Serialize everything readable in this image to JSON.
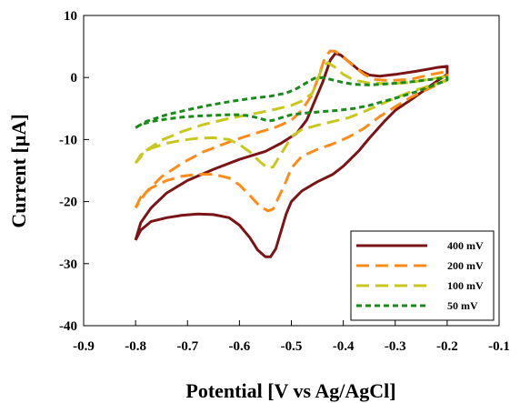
{
  "chart_data": {
    "type": "line",
    "title": "",
    "xlabel": "Potential [V vs Ag/AgCl]",
    "ylabel": "Current [µA]",
    "xlim": [
      -0.9,
      -0.1
    ],
    "ylim": [
      -40,
      10
    ],
    "xticks": [
      "-0.9",
      "-0.8",
      "-0.7",
      "-0.6",
      "-0.5",
      "-0.4",
      "-0.3",
      "-0.2",
      "-0.1"
    ],
    "yticks": [
      "10",
      "0",
      "-10",
      "-20",
      "-30",
      "-40"
    ],
    "grid": false,
    "legend_position": "bottom-right",
    "series": [
      {
        "name": "400 mV",
        "color": "#7b1416",
        "dash": "solid",
        "points": [
          [
            -0.8,
            -26.2
          ],
          [
            -0.79,
            -24.6
          ],
          [
            -0.77,
            -23.2
          ],
          [
            -0.74,
            -22.6
          ],
          [
            -0.71,
            -22.2
          ],
          [
            -0.68,
            -22.0
          ],
          [
            -0.65,
            -22.1
          ],
          [
            -0.62,
            -22.6
          ],
          [
            -0.6,
            -23.8
          ],
          [
            -0.58,
            -25.8
          ],
          [
            -0.565,
            -27.8
          ],
          [
            -0.55,
            -28.9
          ],
          [
            -0.54,
            -28.9
          ],
          [
            -0.53,
            -27.6
          ],
          [
            -0.52,
            -24.8
          ],
          [
            -0.51,
            -22.0
          ],
          [
            -0.5,
            -20.0
          ],
          [
            -0.48,
            -18.3
          ],
          [
            -0.45,
            -16.8
          ],
          [
            -0.42,
            -15.6
          ],
          [
            -0.4,
            -14.3
          ],
          [
            -0.37,
            -11.8
          ],
          [
            -0.35,
            -9.8
          ],
          [
            -0.32,
            -7.0
          ],
          [
            -0.3,
            -5.3
          ],
          [
            -0.27,
            -3.6
          ],
          [
            -0.24,
            -1.8
          ],
          [
            -0.22,
            -0.6
          ],
          [
            -0.2,
            0.5
          ],
          [
            -0.2,
            1.8
          ],
          [
            -0.22,
            1.6
          ],
          [
            -0.26,
            1.0
          ],
          [
            -0.3,
            0.5
          ],
          [
            -0.33,
            0.2
          ],
          [
            -0.35,
            0.4
          ],
          [
            -0.37,
            1.2
          ],
          [
            -0.39,
            2.6
          ],
          [
            -0.405,
            3.6
          ],
          [
            -0.415,
            3.9
          ],
          [
            -0.425,
            2.8
          ],
          [
            -0.44,
            -0.8
          ],
          [
            -0.455,
            -3.8
          ],
          [
            -0.47,
            -6.8
          ],
          [
            -0.49,
            -9.0
          ],
          [
            -0.52,
            -10.6
          ],
          [
            -0.55,
            -11.9
          ],
          [
            -0.6,
            -13.2
          ],
          [
            -0.65,
            -14.8
          ],
          [
            -0.7,
            -16.6
          ],
          [
            -0.74,
            -18.6
          ],
          [
            -0.77,
            -21.0
          ],
          [
            -0.79,
            -23.4
          ],
          [
            -0.8,
            -26.2
          ]
        ]
      },
      {
        "name": "200 mV",
        "color": "#ff8c1a",
        "dash": "long-dash",
        "points": [
          [
            -0.8,
            -21.0
          ],
          [
            -0.79,
            -19.3
          ],
          [
            -0.77,
            -17.8
          ],
          [
            -0.74,
            -16.6
          ],
          [
            -0.71,
            -15.9
          ],
          [
            -0.68,
            -15.6
          ],
          [
            -0.65,
            -15.6
          ],
          [
            -0.62,
            -16.2
          ],
          [
            -0.6,
            -17.3
          ],
          [
            -0.58,
            -19.0
          ],
          [
            -0.56,
            -20.8
          ],
          [
            -0.545,
            -21.5
          ],
          [
            -0.535,
            -21.2
          ],
          [
            -0.525,
            -19.4
          ],
          [
            -0.51,
            -16.7
          ],
          [
            -0.5,
            -14.6
          ],
          [
            -0.48,
            -12.7
          ],
          [
            -0.45,
            -11.6
          ],
          [
            -0.42,
            -10.7
          ],
          [
            -0.39,
            -9.6
          ],
          [
            -0.36,
            -8.2
          ],
          [
            -0.33,
            -6.3
          ],
          [
            -0.3,
            -4.7
          ],
          [
            -0.27,
            -3.2
          ],
          [
            -0.24,
            -2.0
          ],
          [
            -0.22,
            -1.2
          ],
          [
            -0.2,
            -0.3
          ],
          [
            -0.2,
            1.0
          ],
          [
            -0.23,
            0.5
          ],
          [
            -0.27,
            -0.3
          ],
          [
            -0.31,
            -0.5
          ],
          [
            -0.34,
            -0.3
          ],
          [
            -0.36,
            0.5
          ],
          [
            -0.38,
            1.8
          ],
          [
            -0.4,
            3.3
          ],
          [
            -0.415,
            4.2
          ],
          [
            -0.425,
            4.3
          ],
          [
            -0.435,
            3.3
          ],
          [
            -0.445,
            0.8
          ],
          [
            -0.46,
            -2.8
          ],
          [
            -0.48,
            -5.3
          ],
          [
            -0.5,
            -6.9
          ],
          [
            -0.53,
            -8.0
          ],
          [
            -0.57,
            -9.0
          ],
          [
            -0.62,
            -10.4
          ],
          [
            -0.67,
            -12.0
          ],
          [
            -0.71,
            -13.8
          ],
          [
            -0.75,
            -16.0
          ],
          [
            -0.78,
            -18.5
          ],
          [
            -0.8,
            -21.0
          ]
        ]
      },
      {
        "name": "100 mV",
        "color": "#c8c71e",
        "dash": "long-dash",
        "points": [
          [
            -0.8,
            -13.8
          ],
          [
            -0.79,
            -12.5
          ],
          [
            -0.77,
            -11.4
          ],
          [
            -0.74,
            -10.6
          ],
          [
            -0.71,
            -10.1
          ],
          [
            -0.68,
            -9.8
          ],
          [
            -0.65,
            -9.7
          ],
          [
            -0.62,
            -10.0
          ],
          [
            -0.6,
            -10.8
          ],
          [
            -0.58,
            -12.0
          ],
          [
            -0.56,
            -13.6
          ],
          [
            -0.545,
            -14.6
          ],
          [
            -0.535,
            -14.4
          ],
          [
            -0.525,
            -13.0
          ],
          [
            -0.51,
            -11.0
          ],
          [
            -0.5,
            -9.5
          ],
          [
            -0.48,
            -8.4
          ],
          [
            -0.45,
            -7.7
          ],
          [
            -0.42,
            -7.1
          ],
          [
            -0.39,
            -6.5
          ],
          [
            -0.36,
            -5.5
          ],
          [
            -0.33,
            -4.4
          ],
          [
            -0.3,
            -3.3
          ],
          [
            -0.27,
            -2.3
          ],
          [
            -0.24,
            -1.5
          ],
          [
            -0.2,
            -0.5
          ],
          [
            -0.2,
            0.2
          ],
          [
            -0.23,
            -0.2
          ],
          [
            -0.27,
            -0.8
          ],
          [
            -0.31,
            -1.0
          ],
          [
            -0.35,
            -0.9
          ],
          [
            -0.38,
            -0.4
          ],
          [
            -0.4,
            0.5
          ],
          [
            -0.415,
            1.6
          ],
          [
            -0.43,
            2.4
          ],
          [
            -0.44,
            1.8
          ],
          [
            -0.45,
            -0.5
          ],
          [
            -0.46,
            -2.6
          ],
          [
            -0.48,
            -3.8
          ],
          [
            -0.5,
            -4.5
          ],
          [
            -0.53,
            -5.1
          ],
          [
            -0.57,
            -5.8
          ],
          [
            -0.62,
            -6.6
          ],
          [
            -0.67,
            -7.6
          ],
          [
            -0.71,
            -8.7
          ],
          [
            -0.75,
            -10.1
          ],
          [
            -0.78,
            -11.8
          ],
          [
            -0.8,
            -13.8
          ]
        ]
      },
      {
        "name": "50 mV",
        "color": "#1a8a1a",
        "dash": "short-dash",
        "points": [
          [
            -0.8,
            -8.1
          ],
          [
            -0.79,
            -7.6
          ],
          [
            -0.77,
            -7.1
          ],
          [
            -0.74,
            -6.7
          ],
          [
            -0.71,
            -6.4
          ],
          [
            -0.68,
            -6.2
          ],
          [
            -0.65,
            -6.1
          ],
          [
            -0.62,
            -6.0
          ],
          [
            -0.6,
            -6.0
          ],
          [
            -0.58,
            -6.2
          ],
          [
            -0.56,
            -6.6
          ],
          [
            -0.545,
            -7.0
          ],
          [
            -0.535,
            -6.9
          ],
          [
            -0.52,
            -6.5
          ],
          [
            -0.5,
            -6.0
          ],
          [
            -0.47,
            -5.7
          ],
          [
            -0.44,
            -5.5
          ],
          [
            -0.41,
            -5.3
          ],
          [
            -0.38,
            -5.0
          ],
          [
            -0.35,
            -4.5
          ],
          [
            -0.32,
            -3.8
          ],
          [
            -0.29,
            -3.1
          ],
          [
            -0.26,
            -2.3
          ],
          [
            -0.23,
            -1.4
          ],
          [
            -0.2,
            -0.4
          ],
          [
            -0.2,
            0.0
          ],
          [
            -0.23,
            -0.3
          ],
          [
            -0.27,
            -0.7
          ],
          [
            -0.31,
            -1.0
          ],
          [
            -0.35,
            -1.2
          ],
          [
            -0.38,
            -1.1
          ],
          [
            -0.4,
            -0.8
          ],
          [
            -0.42,
            -0.4
          ],
          [
            -0.44,
            0.0
          ],
          [
            -0.455,
            -0.1
          ],
          [
            -0.47,
            -0.8
          ],
          [
            -0.49,
            -1.8
          ],
          [
            -0.51,
            -2.5
          ],
          [
            -0.54,
            -3.0
          ],
          [
            -0.58,
            -3.4
          ],
          [
            -0.62,
            -3.9
          ],
          [
            -0.66,
            -4.5
          ],
          [
            -0.7,
            -5.2
          ],
          [
            -0.74,
            -6.0
          ],
          [
            -0.78,
            -7.1
          ],
          [
            -0.8,
            -8.1
          ]
        ]
      }
    ]
  }
}
